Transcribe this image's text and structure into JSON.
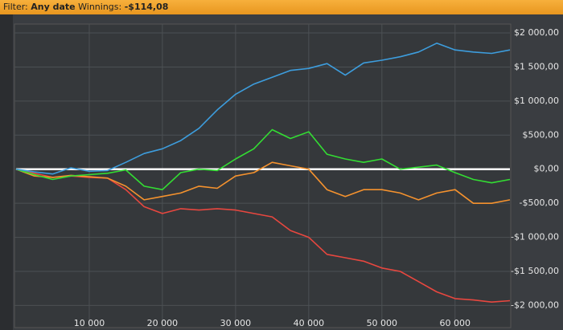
{
  "header": {
    "filter_label": "Filter:",
    "filter_value": "Any date",
    "winnings_label": "Winnings:",
    "winnings_value": "-$114,08"
  },
  "chart_data": {
    "type": "line",
    "x": [
      0,
      2500,
      5000,
      7500,
      10000,
      12500,
      15000,
      17500,
      20000,
      22500,
      25000,
      27500,
      30000,
      32500,
      35000,
      37500,
      40000,
      42500,
      45000,
      47500,
      50000,
      52500,
      55000,
      57500,
      60000,
      62500,
      65000,
      67500
    ],
    "series": [
      {
        "color": "#3d9ddd",
        "values": [
          0,
          -40,
          -70,
          20,
          -30,
          -20,
          100,
          230,
          300,
          420,
          600,
          870,
          1100,
          1250,
          1350,
          1450,
          1480,
          1550,
          1380,
          1560,
          1600,
          1650,
          1720,
          1850,
          1750,
          1720,
          1700,
          1750
        ]
      },
      {
        "color": "#33dd33",
        "values": [
          0,
          -80,
          -150,
          -100,
          -80,
          -60,
          -10,
          -250,
          -300,
          -50,
          0,
          -20,
          150,
          300,
          580,
          450,
          550,
          220,
          150,
          100,
          150,
          0,
          30,
          60,
          -50,
          -150,
          -200,
          -150
        ]
      },
      {
        "color": "#f5922e",
        "values": [
          0,
          -100,
          -120,
          -90,
          -110,
          -130,
          -250,
          -450,
          -400,
          -350,
          -250,
          -280,
          -100,
          -50,
          100,
          50,
          0,
          -300,
          -400,
          -300,
          -300,
          -350,
          -450,
          -350,
          -300,
          -500,
          -500,
          -450
        ]
      },
      {
        "color": "#e8473f",
        "values": [
          0,
          -60,
          -120,
          -100,
          -120,
          -130,
          -300,
          -550,
          -650,
          -580,
          -600,
          -580,
          -600,
          -650,
          -700,
          -900,
          -1000,
          -1250,
          -1300,
          -1350,
          -1450,
          -1500,
          -1650,
          -1800,
          -1900,
          -1920,
          -1950,
          -1930
        ]
      }
    ],
    "xlim": [
      0,
      67500
    ],
    "xticks": [
      {
        "value": 10000,
        "label": "10 000"
      },
      {
        "value": 20000,
        "label": "20 000"
      },
      {
        "value": 30000,
        "label": "30 000"
      },
      {
        "value": 40000,
        "label": "40 000"
      },
      {
        "value": 50000,
        "label": "50 000"
      },
      {
        "value": 60000,
        "label": "60 000"
      }
    ],
    "ylim": [
      -2325,
      2130
    ],
    "yticks": [
      {
        "value": 2000,
        "label": "$2 000,00"
      },
      {
        "value": 1500,
        "label": "$1 500,00"
      },
      {
        "value": 1000,
        "label": "$1 000,00"
      },
      {
        "value": 500,
        "label": "$500,00"
      },
      {
        "value": 0,
        "label": "$0,00"
      },
      {
        "value": -500,
        "label": "-$500,00"
      },
      {
        "value": -1000,
        "label": "-$1 000,00"
      },
      {
        "value": -1500,
        "label": "-$1 500,00"
      },
      {
        "value": -2000,
        "label": "-$2 000,00"
      }
    ],
    "grid": true,
    "zero_line": true
  }
}
